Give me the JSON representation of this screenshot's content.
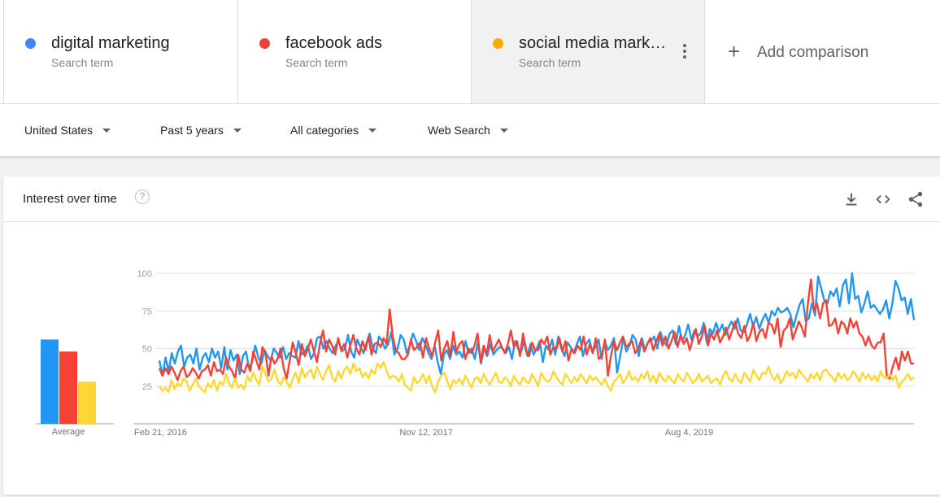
{
  "terms": [
    {
      "name": "digital marketing",
      "sub": "Search term",
      "color": "#4285f4"
    },
    {
      "name": "facebook ads",
      "sub": "Search term",
      "color": "#ea4335"
    },
    {
      "name": "social media mark…",
      "sub": "Search term",
      "color": "#f9ab00"
    }
  ],
  "add_comparison": "Add comparison",
  "filters": {
    "region": "United States",
    "time": "Past 5 years",
    "category": "All categories",
    "search_type": "Web Search"
  },
  "card": {
    "title": "Interest over time",
    "icons": [
      "help-icon",
      "download-icon",
      "embed-icon",
      "share-icon"
    ]
  },
  "chart_data": {
    "type": "line",
    "ylim": [
      0,
      100
    ],
    "yticks": [
      25,
      50,
      75,
      100
    ],
    "xtick_labels": [
      "Feb 21, 2016",
      "Nov 12, 2017",
      "Aug 4, 2019"
    ],
    "grid": true,
    "average_label": "Average",
    "colors": [
      "#2196f3",
      "#f44336",
      "#fdd835"
    ],
    "series": [
      {
        "name": "digital marketing",
        "average": 56,
        "values": [
          42,
          32,
          44,
          35,
          47,
          40,
          48,
          52,
          38,
          44,
          46,
          40,
          50,
          36,
          44,
          47,
          41,
          50,
          44,
          48,
          37,
          51,
          36,
          49,
          42,
          46,
          33,
          45,
          48,
          37,
          41,
          52,
          44,
          40,
          49,
          45,
          42,
          50,
          47,
          44,
          51,
          43,
          47,
          45,
          44,
          55,
          46,
          48,
          52,
          43,
          47,
          57,
          58,
          50,
          55,
          50,
          47,
          52,
          55,
          48,
          50,
          59,
          48,
          44,
          56,
          51,
          47,
          54,
          60,
          50,
          47,
          58,
          55,
          50,
          53,
          61,
          46,
          50,
          59,
          56,
          47,
          52,
          60,
          55,
          49,
          57,
          53,
          47,
          43,
          52,
          41,
          33,
          46,
          49,
          43,
          52,
          46,
          48,
          44,
          55,
          47,
          50,
          43,
          54,
          40,
          50,
          45,
          53,
          46,
          49,
          51,
          50,
          47,
          51,
          43,
          55,
          50,
          48,
          56,
          45,
          53,
          46,
          50,
          55,
          41,
          52,
          49,
          56,
          46,
          58,
          50,
          45,
          54,
          51,
          47,
          53,
          58,
          45,
          53,
          56,
          48,
          51,
          56,
          43,
          55,
          49,
          52,
          57,
          34,
          45,
          57,
          48,
          52,
          59,
          56,
          45,
          57,
          49,
          54,
          55,
          58,
          50,
          61,
          55,
          52,
          60,
          62,
          53,
          65,
          55,
          59,
          66,
          56,
          62,
          58,
          60,
          67,
          54,
          63,
          60,
          67,
          61,
          66,
          59,
          64,
          68,
          63,
          70,
          62,
          61,
          66,
          73,
          65,
          71,
          63,
          69,
          73,
          67,
          75,
          72,
          77,
          74,
          75,
          77,
          73,
          64,
          72,
          79,
          83,
          68,
          70,
          80,
          72,
          98,
          90,
          82,
          80,
          88,
          85,
          90,
          78,
          92,
          96,
          80,
          100,
          83,
          85,
          74,
          80,
          88,
          77,
          79,
          76,
          73,
          76,
          82,
          70,
          80,
          95,
          90,
          82,
          84,
          73,
          83,
          69
        ]
      },
      {
        "name": "facebook ads",
        "average": 48,
        "values": [
          37,
          32,
          37,
          33,
          38,
          34,
          29,
          35,
          38,
          31,
          33,
          37,
          34,
          30,
          35,
          36,
          39,
          32,
          41,
          35,
          36,
          33,
          44,
          38,
          35,
          30,
          46,
          36,
          34,
          40,
          35,
          48,
          42,
          36,
          51,
          47,
          32,
          45,
          40,
          43,
          50,
          37,
          30,
          42,
          54,
          47,
          39,
          53,
          45,
          50,
          56,
          48,
          41,
          53,
          62,
          48,
          56,
          52,
          46,
          57,
          49,
          53,
          44,
          52,
          59,
          50,
          46,
          55,
          49,
          58,
          46,
          53,
          54,
          51,
          57,
          53,
          76,
          58,
          49,
          47,
          43,
          43,
          46,
          56,
          49,
          51,
          54,
          44,
          57,
          50,
          45,
          54,
          62,
          42,
          50,
          55,
          45,
          61,
          48,
          53,
          55,
          43,
          50,
          47,
          52,
          60,
          41,
          52,
          46,
          59,
          48,
          52,
          56,
          51,
          47,
          53,
          62,
          51,
          55,
          45,
          60,
          48,
          45,
          54,
          49,
          49,
          56,
          53,
          58,
          46,
          51,
          50,
          57,
          48,
          55,
          42,
          50,
          47,
          52,
          49,
          58,
          46,
          53,
          47,
          57,
          43,
          45,
          56,
          32,
          45,
          55,
          49,
          54,
          58,
          51,
          53,
          55,
          47,
          50,
          56,
          48,
          53,
          57,
          49,
          55,
          60,
          52,
          58,
          50,
          55,
          61,
          51,
          59,
          53,
          57,
          49,
          56,
          63,
          53,
          58,
          65,
          52,
          60,
          56,
          62,
          54,
          58,
          64,
          56,
          62,
          68,
          60,
          57,
          65,
          55,
          59,
          67,
          55,
          61,
          63,
          57,
          67,
          66,
          60,
          70,
          51,
          62,
          64,
          70,
          56,
          62,
          68,
          64,
          58,
          80,
          96,
          75,
          80,
          70,
          80,
          82,
          65,
          66,
          70,
          60,
          68,
          66,
          60,
          70,
          64,
          68,
          60,
          58,
          52,
          58,
          52,
          50,
          54,
          54,
          60,
          32,
          30,
          38,
          44,
          36,
          48,
          42,
          48,
          40,
          40
        ]
      },
      {
        "name": "social media marketing",
        "average": 28,
        "values": [
          25,
          22,
          24,
          21,
          29,
          23,
          27,
          25,
          30,
          28,
          22,
          26,
          30,
          25,
          23,
          21,
          27,
          24,
          29,
          22,
          28,
          26,
          33,
          27,
          24,
          30,
          24,
          26,
          23,
          32,
          28,
          34,
          29,
          26,
          38,
          33,
          28,
          30,
          36,
          29,
          26,
          31,
          28,
          24,
          30,
          34,
          27,
          37,
          31,
          34,
          36,
          30,
          38,
          33,
          29,
          35,
          39,
          31,
          28,
          35,
          30,
          36,
          38,
          33,
          40,
          35,
          37,
          31,
          34,
          30,
          36,
          33,
          40,
          37,
          41,
          35,
          30,
          32,
          31,
          28,
          33,
          26,
          24,
          22,
          31,
          27,
          29,
          33,
          27,
          32,
          25,
          21,
          28,
          32,
          34,
          28,
          23,
          29,
          27,
          30,
          26,
          32,
          28,
          24,
          30,
          31,
          27,
          33,
          29,
          26,
          30,
          34,
          28,
          27,
          31,
          29,
          25,
          32,
          28,
          26,
          31,
          28,
          27,
          33,
          29,
          25,
          34,
          30,
          28,
          29,
          35,
          31,
          28,
          26,
          33,
          30,
          27,
          31,
          28,
          33,
          30,
          27,
          32,
          29,
          31,
          28,
          26,
          30,
          25,
          22,
          28,
          30,
          33,
          27,
          30,
          35,
          29,
          31,
          28,
          33,
          30,
          35,
          28,
          32,
          27,
          34,
          30,
          28,
          32,
          29,
          27,
          33,
          30,
          28,
          34,
          31,
          27,
          29,
          33,
          28,
          30,
          32,
          27,
          29,
          30,
          26,
          32,
          35,
          30,
          28,
          33,
          29,
          27,
          34,
          31,
          28,
          36,
          32,
          29,
          34,
          33,
          38,
          32,
          29,
          33,
          27,
          30,
          35,
          32,
          34,
          30,
          36,
          33,
          31,
          28,
          33,
          30,
          34,
          29,
          35,
          36,
          33,
          31,
          28,
          34,
          30,
          33,
          29,
          31,
          35,
          32,
          28,
          34,
          30,
          33,
          29,
          32,
          28,
          35,
          31,
          30,
          33,
          29,
          32,
          24,
          28,
          30,
          33,
          29,
          31
        ]
      }
    ]
  }
}
